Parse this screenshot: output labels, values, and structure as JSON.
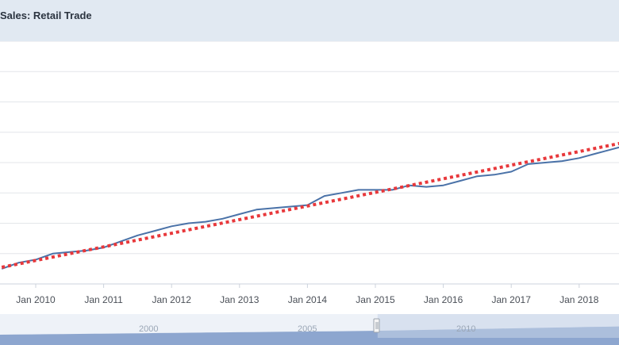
{
  "header": {
    "title": "Sales: Retail Trade"
  },
  "colors": {
    "header_bg": "#e1e9f2",
    "series_line": "#4a72a8",
    "trend_line": "#e8383b",
    "grid": "#e3e6ea",
    "navigator_fill": "#8da6cf",
    "navigator_mask": "#c7d3e8"
  },
  "chart_data": {
    "type": "line",
    "title": "Sales: Retail Trade",
    "xlabel": "",
    "ylabel": "",
    "x_ticks": [
      "Jan 2010",
      "Jan 2011",
      "Jan 2012",
      "Jan 2013",
      "Jan 2014",
      "Jan 2015",
      "Jan 2016",
      "Jan 2017",
      "Jan 2018"
    ],
    "x_range": [
      "2009-07",
      "2018-10"
    ],
    "y_range": [
      0,
      8
    ],
    "grid": true,
    "y_tick_labels_visible": false,
    "series": [
      {
        "style": "solid",
        "x": [
          "2009-07",
          "2009-10",
          "2010-01",
          "2010-04",
          "2010-07",
          "2010-10",
          "2011-01",
          "2011-04",
          "2011-07",
          "2011-10",
          "2012-01",
          "2012-04",
          "2012-07",
          "2012-10",
          "2013-01",
          "2013-04",
          "2013-07",
          "2013-10",
          "2014-01",
          "2014-04",
          "2014-07",
          "2014-10",
          "2015-01",
          "2015-04",
          "2015-07",
          "2015-10",
          "2016-01",
          "2016-04",
          "2016-07",
          "2016-10",
          "2017-01",
          "2017-04",
          "2017-07",
          "2017-10",
          "2018-01",
          "2018-04",
          "2018-07",
          "2018-10"
        ],
        "values": [
          0.5,
          0.7,
          0.8,
          1.0,
          1.05,
          1.1,
          1.2,
          1.4,
          1.6,
          1.75,
          1.9,
          2.0,
          2.05,
          2.15,
          2.3,
          2.45,
          2.5,
          2.55,
          2.6,
          2.9,
          3.0,
          3.1,
          3.1,
          3.1,
          3.25,
          3.2,
          3.25,
          3.4,
          3.55,
          3.6,
          3.7,
          3.95,
          4.0,
          4.05,
          4.15,
          4.3,
          4.45,
          4.6
        ]
      },
      {
        "style": "dotted-trend",
        "x": [
          "2009-07",
          "2018-10"
        ],
        "values": [
          0.55,
          4.7
        ]
      }
    ]
  },
  "navigator": {
    "labels": [
      "2000",
      "2005",
      "2010"
    ],
    "range_start_fraction": 0.61,
    "range_end_fraction": 1.0
  }
}
